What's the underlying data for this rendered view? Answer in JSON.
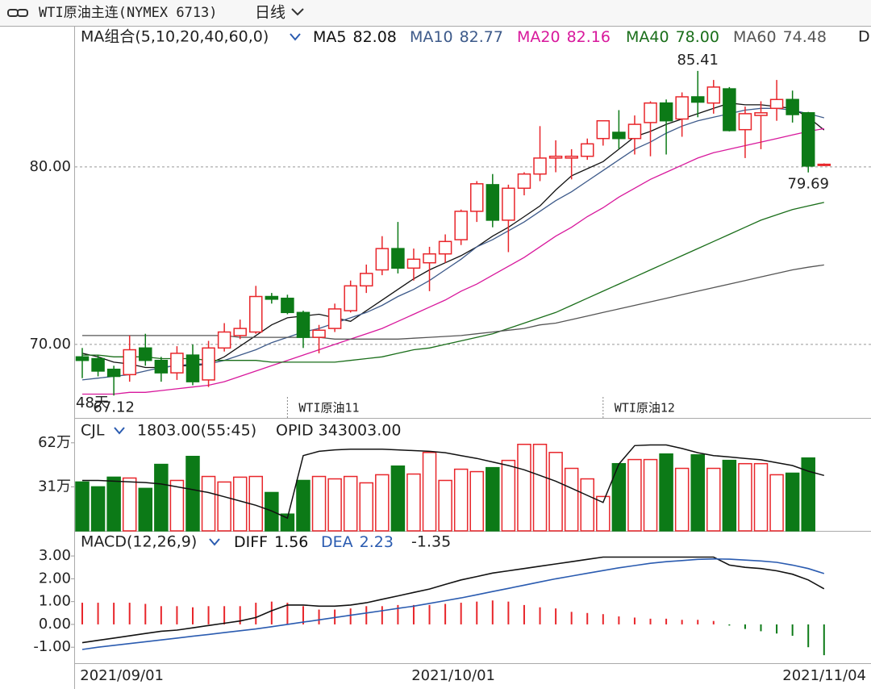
{
  "header": {
    "title": "WTI原油主连(NYMEX 6713)",
    "period": "日线"
  },
  "chart_data": [
    {
      "type": "candlestick",
      "indicator": "MA组合(5,10,20,40,60,0)",
      "legend_more": "D",
      "up_color": "#e8262b",
      "down_color": "#0c7a17",
      "open": [
        69.3,
        69.2,
        68.6,
        68.3,
        69.8,
        69.1,
        68.4,
        69.4,
        68.0,
        69.8,
        70.5,
        70.7,
        72.7,
        72.6,
        71.8,
        70.4,
        70.9,
        71.9,
        73.3,
        74.2,
        75.4,
        74.3,
        74.6,
        75.1,
        75.9,
        77.5,
        79.0,
        77.0,
        78.8,
        79.6,
        80.5,
        80.5,
        80.6,
        81.6,
        81.95,
        81.6,
        82.5,
        83.6,
        82.7,
        83.95,
        83.6,
        84.4,
        82.1,
        82.9,
        83.3,
        83.8,
        83.05,
        80.1
      ],
      "high": [
        69.8,
        69.4,
        68.8,
        70.5,
        70.6,
        69.3,
        69.9,
        70.0,
        70.2,
        71.2,
        71.4,
        73.3,
        72.9,
        72.8,
        71.9,
        71.1,
        72.3,
        73.6,
        74.5,
        76.1,
        76.9,
        75.4,
        75.5,
        76.2,
        77.6,
        79.2,
        79.6,
        79.0,
        79.7,
        82.3,
        81.5,
        81.0,
        81.6,
        82.6,
        83.2,
        82.9,
        83.7,
        83.8,
        84.2,
        85.41,
        84.9,
        84.5,
        83.4,
        83.7,
        84.9,
        84.3,
        83.1,
        80.2
      ],
      "low": [
        68.1,
        68.2,
        67.12,
        67.9,
        68.8,
        67.9,
        68.0,
        67.7,
        67.6,
        69.6,
        70.3,
        70.6,
        72.3,
        71.7,
        69.8,
        69.5,
        70.7,
        71.8,
        72.9,
        73.9,
        74.0,
        73.6,
        73.0,
        74.6,
        75.6,
        76.9,
        76.6,
        75.2,
        78.4,
        79.2,
        79.7,
        79.3,
        80.4,
        81.2,
        81.0,
        80.7,
        80.6,
        80.7,
        81.7,
        82.8,
        83.0,
        82.0,
        80.5,
        81.0,
        82.6,
        82.5,
        79.69,
        80.05
      ],
      "close": [
        69.1,
        68.5,
        68.2,
        69.7,
        69.1,
        68.4,
        69.5,
        67.9,
        69.8,
        70.7,
        70.9,
        72.7,
        72.55,
        71.8,
        70.4,
        70.8,
        72.0,
        73.3,
        74.0,
        75.4,
        74.3,
        74.8,
        75.1,
        75.8,
        77.5,
        79.05,
        77.0,
        78.8,
        79.6,
        80.5,
        80.6,
        80.6,
        81.3,
        82.6,
        81.6,
        82.4,
        83.6,
        82.6,
        83.95,
        83.65,
        84.5,
        82.05,
        83.0,
        83.05,
        83.8,
        82.95,
        80.05,
        80.15
      ],
      "ylim": [
        65.86,
        87.95
      ],
      "yticks": [
        {
          "value": 80,
          "label": "80.00"
        },
        {
          "value": 70,
          "label": "70.00"
        }
      ],
      "grid": true,
      "annotations": [
        {
          "kind": "high",
          "index": 39
        },
        {
          "kind": "low",
          "index": 46
        },
        {
          "kind": "low",
          "index": 2
        }
      ],
      "days_label": "48天",
      "contract_marks": [
        {
          "label": "WTI原油11",
          "index": 13
        },
        {
          "label": "WTI原油12",
          "index": 33
        }
      ],
      "series": [
        {
          "name": "MA5",
          "legend_value": "82.08",
          "color": "#111111",
          "values": [
            69.5,
            69.3,
            69.0,
            68.9,
            68.7,
            68.7,
            68.8,
            68.8,
            68.9,
            69.3,
            69.9,
            70.5,
            71.1,
            71.5,
            71.6,
            71.7,
            71.5,
            71.3,
            71.9,
            72.5,
            73.1,
            73.7,
            74.2,
            74.6,
            75.0,
            75.5,
            76.1,
            76.6,
            77.2,
            77.8,
            78.7,
            79.5,
            79.9,
            80.3,
            81.0,
            81.7,
            82.0,
            82.4,
            82.7,
            83.0,
            83.3,
            83.6,
            83.5,
            83.5,
            83.4,
            83.3,
            82.8,
            82.08
          ]
        },
        {
          "name": "MA10",
          "legend_value": "82.77",
          "color": "#3d5a8a",
          "values": [
            68.0,
            68.1,
            68.2,
            68.3,
            68.5,
            68.7,
            68.8,
            68.9,
            68.9,
            69.1,
            69.4,
            69.7,
            70.1,
            70.4,
            70.7,
            70.9,
            71.2,
            71.5,
            71.8,
            72.2,
            72.7,
            73.1,
            73.6,
            74.2,
            74.8,
            75.5,
            75.9,
            76.4,
            76.9,
            77.5,
            78.1,
            78.6,
            79.2,
            79.8,
            80.4,
            81.0,
            81.4,
            81.9,
            82.3,
            82.6,
            82.8,
            83.0,
            83.2,
            83.3,
            83.3,
            83.2,
            83.0,
            82.77
          ]
        },
        {
          "name": "MA20",
          "legend_value": "82.16",
          "color": "#d8189c",
          "values": [
            67.2,
            67.2,
            67.2,
            67.3,
            67.3,
            67.4,
            67.5,
            67.6,
            67.7,
            67.9,
            68.2,
            68.5,
            68.8,
            69.1,
            69.4,
            69.7,
            70.0,
            70.3,
            70.6,
            70.9,
            71.3,
            71.7,
            72.1,
            72.5,
            73.0,
            73.4,
            73.9,
            74.4,
            74.9,
            75.5,
            76.1,
            76.6,
            77.2,
            77.7,
            78.3,
            78.8,
            79.3,
            79.7,
            80.1,
            80.5,
            80.8,
            81.0,
            81.2,
            81.4,
            81.6,
            81.8,
            82.0,
            82.16
          ]
        },
        {
          "name": "MA40",
          "legend_value": "78.00",
          "color": "#1a6e1a",
          "values": [
            69.4,
            69.4,
            69.3,
            69.3,
            69.3,
            69.2,
            69.2,
            69.2,
            69.1,
            69.1,
            69.1,
            69.1,
            69.0,
            69.0,
            69.0,
            69.0,
            69.0,
            69.1,
            69.2,
            69.3,
            69.5,
            69.7,
            69.8,
            70.0,
            70.2,
            70.4,
            70.6,
            70.9,
            71.2,
            71.5,
            71.8,
            72.2,
            72.6,
            73.0,
            73.4,
            73.8,
            74.2,
            74.6,
            75.0,
            75.4,
            75.8,
            76.2,
            76.6,
            77.0,
            77.3,
            77.6,
            77.8,
            78.0
          ]
        },
        {
          "name": "MA60",
          "legend_value": "74.48",
          "color": "#555555",
          "values": [
            70.5,
            70.5,
            70.5,
            70.5,
            70.5,
            70.5,
            70.5,
            70.5,
            70.5,
            70.5,
            70.4,
            70.4,
            70.4,
            70.4,
            70.4,
            70.4,
            70.3,
            70.3,
            70.3,
            70.3,
            70.3,
            70.35,
            70.4,
            70.45,
            70.5,
            70.6,
            70.7,
            70.8,
            70.9,
            71.1,
            71.2,
            71.4,
            71.6,
            71.8,
            72.0,
            72.2,
            72.4,
            72.6,
            72.8,
            73.0,
            73.2,
            73.4,
            73.6,
            73.8,
            74.0,
            74.2,
            74.35,
            74.48
          ]
        }
      ]
    },
    {
      "type": "bar",
      "indicator": "CJL",
      "status": "1803.00(55:45)",
      "opid": "OPID 343003.00",
      "ylim": [
        0,
        79.5
      ],
      "yticks": [
        {
          "value": 62,
          "label": "62万"
        },
        {
          "value": 31,
          "label": "31万"
        }
      ],
      "values": [
        34.4,
        31,
        37.8,
        37.2,
        29.9,
        46.8,
        35.5,
        52.4,
        38.3,
        34.4,
        37.8,
        38.3,
        27,
        11.8,
        35.5,
        38.3,
        36.6,
        38.3,
        33.8,
        39.5,
        45.6,
        40,
        55.2,
        35.5,
        43.4,
        41.7,
        44.5,
        49.6,
        60.9,
        60.9,
        55.2,
        44,
        36.6,
        24.2,
        47.3,
        50.2,
        50.2,
        54.1,
        44,
        53.5,
        44,
        49.6,
        47.3,
        47.3,
        39.5,
        40.6,
        51.3,
        null
      ],
      "line": {
        "color": "#111111",
        "values": [
          35.5,
          35.5,
          35,
          34.5,
          34,
          33,
          31,
          29,
          27,
          24,
          21,
          18,
          14,
          9,
          53,
          56,
          57,
          57.5,
          57.5,
          57.5,
          57,
          56.5,
          56,
          55,
          53,
          51,
          48.5,
          46,
          43,
          39,
          35,
          30,
          25,
          20,
          47,
          60,
          60.5,
          60.5,
          58,
          55,
          53,
          52,
          51,
          50,
          48,
          46,
          42,
          39
        ]
      }
    },
    {
      "type": "macd",
      "indicator": "MACD(12,26,9)",
      "ylim": [
        -1.7,
        4.1
      ],
      "yticks": [
        {
          "value": 3,
          "label": "3.00"
        },
        {
          "value": 2,
          "label": "2.00"
        },
        {
          "value": 1,
          "label": "1.00"
        },
        {
          "value": 0,
          "label": "0.00"
        },
        {
          "value": -1,
          "label": "-1.00"
        }
      ],
      "categories": [
        null,
        null,
        "2021/09/01",
        null,
        null,
        null,
        null,
        null,
        null,
        null,
        null,
        null,
        null,
        null,
        null,
        null,
        null,
        null,
        null,
        null,
        null,
        null,
        null,
        "2021/10/01",
        null,
        null,
        null,
        null,
        null,
        null,
        null,
        null,
        null,
        null,
        null,
        null,
        null,
        null,
        null,
        null,
        null,
        null,
        null,
        null,
        null,
        null,
        null,
        "2021/11/04"
      ],
      "up_color": "#e8262b",
      "down_color": "#0c7a17",
      "histogram": {
        "legend_value": "-1.35",
        "values": [
          0.95,
          0.95,
          0.95,
          0.95,
          0.9,
          0.8,
          0.8,
          0.75,
          0.8,
          0.8,
          0.8,
          0.95,
          1.0,
          0.95,
          0.8,
          0.65,
          0.65,
          0.7,
          0.8,
          0.8,
          0.85,
          0.85,
          0.85,
          0.9,
          0.95,
          1.0,
          1.05,
          1.0,
          0.85,
          0.75,
          0.7,
          0.55,
          0.5,
          0.45,
          0.35,
          0.3,
          0.25,
          0.25,
          0.2,
          0.2,
          0.15,
          -0.05,
          -0.2,
          -0.3,
          -0.4,
          -0.5,
          -1.0,
          -1.35
        ]
      },
      "series": [
        {
          "name": "DIFF",
          "legend_value": "1.56",
          "color": "#111111",
          "values": [
            -0.8,
            -0.7,
            -0.6,
            -0.5,
            -0.4,
            -0.3,
            -0.25,
            -0.15,
            -0.05,
            0.05,
            0.15,
            0.3,
            0.6,
            0.85,
            0.85,
            0.8,
            0.8,
            0.85,
            0.95,
            1.1,
            1.25,
            1.4,
            1.55,
            1.75,
            1.95,
            2.1,
            2.25,
            2.35,
            2.45,
            2.55,
            2.65,
            2.75,
            2.85,
            2.95,
            2.95,
            2.95,
            2.95,
            2.95,
            2.95,
            2.95,
            2.95,
            2.6,
            2.5,
            2.45,
            2.35,
            2.2,
            1.95,
            1.56
          ]
        },
        {
          "name": "DEA",
          "legend_value": "2.23",
          "color": "#2a5bb0",
          "values": [
            -1.1,
            -1.0,
            -0.92,
            -0.84,
            -0.76,
            -0.68,
            -0.6,
            -0.52,
            -0.44,
            -0.36,
            -0.28,
            -0.2,
            -0.1,
            0.0,
            0.1,
            0.2,
            0.3,
            0.4,
            0.5,
            0.6,
            0.7,
            0.8,
            0.92,
            1.04,
            1.16,
            1.3,
            1.44,
            1.58,
            1.72,
            1.86,
            2.0,
            2.12,
            2.24,
            2.36,
            2.48,
            2.58,
            2.68,
            2.75,
            2.8,
            2.85,
            2.87,
            2.86,
            2.82,
            2.78,
            2.72,
            2.6,
            2.45,
            2.23
          ]
        }
      ]
    }
  ]
}
